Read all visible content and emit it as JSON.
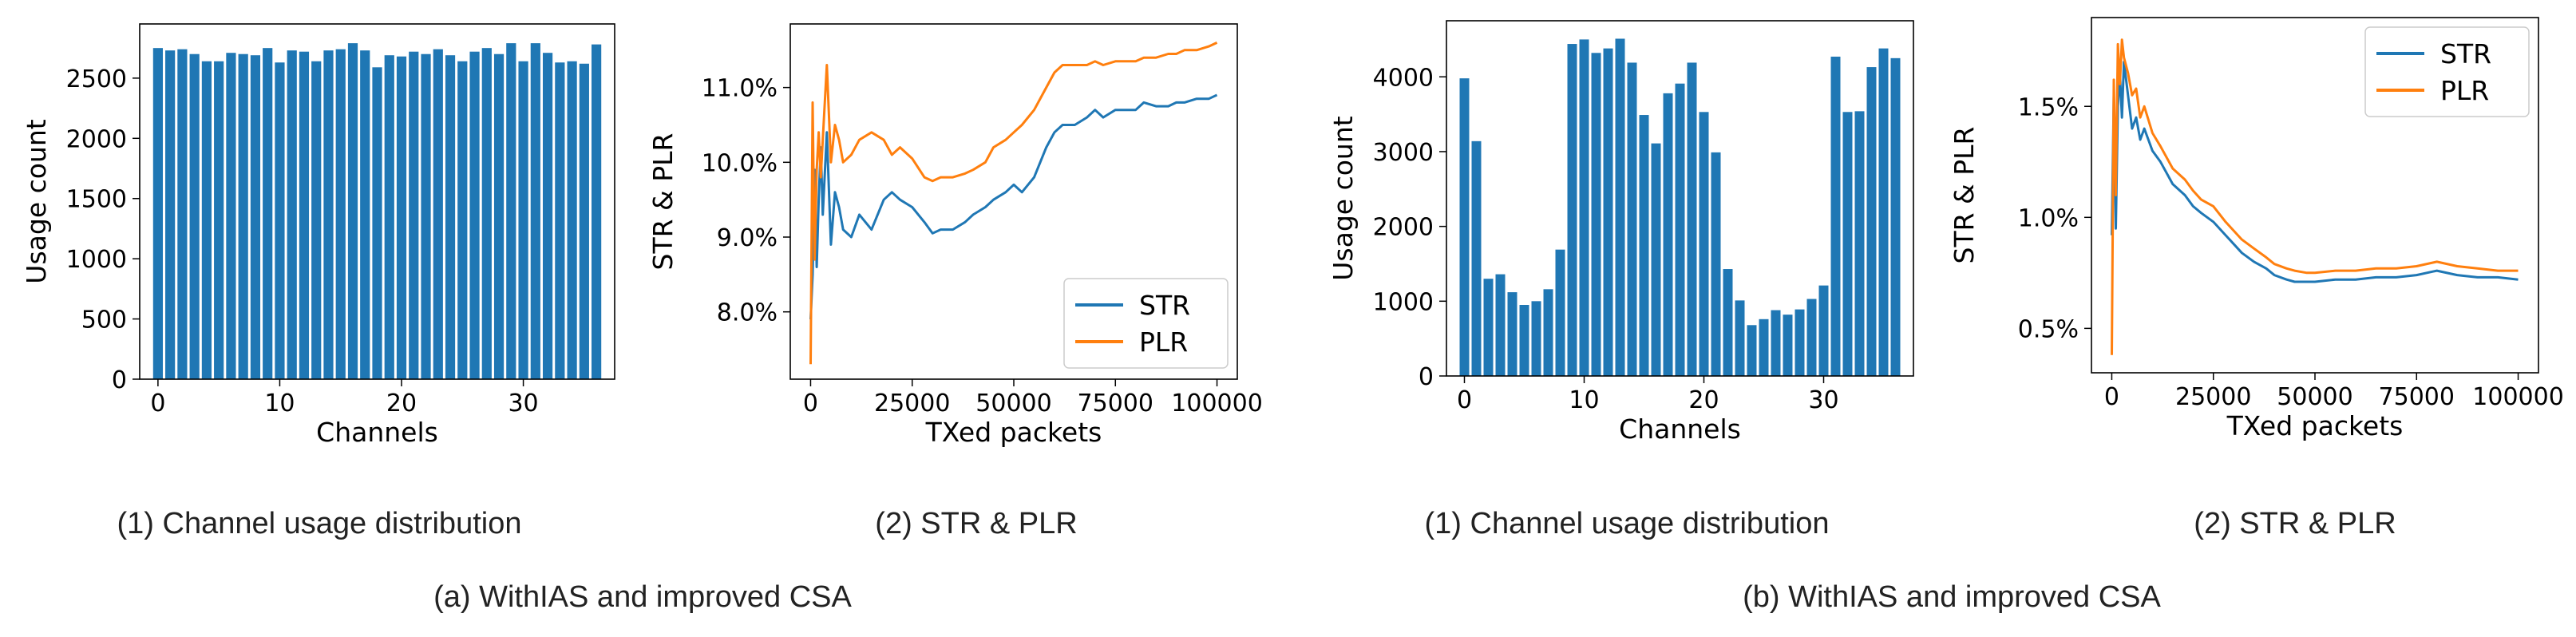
{
  "colors": {
    "str": "#1f77b4",
    "plr": "#ff7f0e",
    "bar": "#1f77b4"
  },
  "captions": {
    "a": {
      "sub1": "(1) Channel usage distribution",
      "sub2": "(2) STR & PLR",
      "group": "(a) WithIAS and improved CSA"
    },
    "b": {
      "sub1": "(1) Channel usage distribution",
      "sub2": "(2) STR & PLR",
      "group": "(b) WithIAS and improved CSA"
    }
  },
  "chart_data": [
    {
      "id": "a1",
      "type": "bar",
      "xlabel": "Channels",
      "ylabel": "Usage count",
      "xlim": [
        -1.5,
        37.5
      ],
      "ylim": [
        0,
        2950
      ],
      "xticks": [
        0,
        10,
        20,
        30
      ],
      "yticks": [
        0,
        500,
        1000,
        1500,
        2000,
        2500
      ],
      "categories": [
        0,
        1,
        2,
        3,
        4,
        5,
        6,
        7,
        8,
        9,
        10,
        11,
        12,
        13,
        14,
        15,
        16,
        17,
        18,
        19,
        20,
        21,
        22,
        23,
        24,
        25,
        26,
        27,
        28,
        29,
        30,
        31,
        32,
        33,
        34,
        35,
        36
      ],
      "values": [
        2750,
        2730,
        2740,
        2700,
        2640,
        2640,
        2710,
        2700,
        2690,
        2750,
        2630,
        2730,
        2720,
        2640,
        2730,
        2740,
        2790,
        2730,
        2590,
        2690,
        2680,
        2720,
        2700,
        2740,
        2690,
        2640,
        2720,
        2750,
        2700,
        2790,
        2640,
        2790,
        2710,
        2630,
        2640,
        2620,
        2780
      ]
    },
    {
      "id": "a2",
      "type": "line",
      "xlabel": "TXed packets",
      "ylabel": "STR & PLR",
      "xlim": [
        -5000,
        105000
      ],
      "ylim": [
        7.1,
        11.85
      ],
      "xticks": [
        0,
        25000,
        50000,
        75000,
        100000
      ],
      "yticks": [
        8.0,
        9.0,
        10.0,
        11.0
      ],
      "ytick_labels": [
        "8.0%",
        "9.0%",
        "10.0%",
        "11.0%"
      ],
      "legend": "lower-right",
      "series": [
        {
          "name": "STR",
          "color_key": "str",
          "x": [
            0,
            500,
            1000,
            1500,
            2000,
            2500,
            3000,
            4000,
            5000,
            6000,
            7000,
            8000,
            10000,
            12000,
            15000,
            18000,
            20000,
            22000,
            25000,
            28000,
            30000,
            32000,
            35000,
            38000,
            40000,
            43000,
            45000,
            48000,
            50000,
            52000,
            55000,
            58000,
            60000,
            62000,
            65000,
            68000,
            70000,
            72000,
            75000,
            78000,
            80000,
            82000,
            85000,
            88000,
            90000,
            92000,
            95000,
            98000,
            100000
          ],
          "y": [
            7.9,
            8.5,
            9.9,
            8.6,
            9.5,
            10.2,
            9.3,
            10.4,
            8.9,
            9.6,
            9.4,
            9.1,
            9.0,
            9.3,
            9.1,
            9.5,
            9.6,
            9.5,
            9.4,
            9.2,
            9.05,
            9.1,
            9.1,
            9.2,
            9.3,
            9.4,
            9.5,
            9.6,
            9.7,
            9.6,
            9.8,
            10.2,
            10.4,
            10.5,
            10.5,
            10.6,
            10.7,
            10.6,
            10.7,
            10.7,
            10.7,
            10.8,
            10.75,
            10.75,
            10.8,
            10.8,
            10.85,
            10.85,
            10.9
          ]
        },
        {
          "name": "PLR",
          "color_key": "plr",
          "x": [
            0,
            500,
            1000,
            1500,
            2000,
            2500,
            3000,
            4000,
            5000,
            6000,
            7000,
            8000,
            10000,
            12000,
            15000,
            18000,
            20000,
            22000,
            25000,
            28000,
            30000,
            32000,
            35000,
            38000,
            40000,
            43000,
            45000,
            48000,
            50000,
            52000,
            55000,
            58000,
            60000,
            62000,
            65000,
            68000,
            70000,
            72000,
            75000,
            78000,
            80000,
            82000,
            85000,
            88000,
            90000,
            92000,
            95000,
            98000,
            100000
          ],
          "y": [
            7.3,
            10.8,
            8.7,
            9.9,
            10.4,
            9.8,
            10.3,
            11.3,
            10.0,
            10.5,
            10.3,
            10.0,
            10.1,
            10.3,
            10.4,
            10.3,
            10.1,
            10.2,
            10.05,
            9.8,
            9.75,
            9.8,
            9.8,
            9.85,
            9.9,
            10.0,
            10.2,
            10.3,
            10.4,
            10.5,
            10.7,
            11.0,
            11.2,
            11.3,
            11.3,
            11.3,
            11.35,
            11.3,
            11.35,
            11.35,
            11.35,
            11.4,
            11.4,
            11.45,
            11.45,
            11.5,
            11.5,
            11.55,
            11.6
          ]
        }
      ]
    },
    {
      "id": "b1",
      "type": "bar",
      "xlabel": "Channels",
      "ylabel": "Usage count",
      "xlim": [
        -1.5,
        37.5
      ],
      "ylim": [
        0,
        4750
      ],
      "xticks": [
        0,
        10,
        20,
        30
      ],
      "yticks": [
        0,
        1000,
        2000,
        3000,
        4000
      ],
      "categories": [
        0,
        1,
        2,
        3,
        4,
        5,
        6,
        7,
        8,
        9,
        10,
        11,
        12,
        13,
        14,
        15,
        16,
        17,
        18,
        19,
        20,
        21,
        22,
        23,
        24,
        25,
        26,
        27,
        28,
        29,
        30,
        31,
        32,
        33,
        34,
        35,
        36
      ],
      "values": [
        3980,
        3140,
        1300,
        1360,
        1120,
        950,
        1000,
        1160,
        1690,
        4440,
        4500,
        4320,
        4380,
        4510,
        4190,
        3490,
        3110,
        3780,
        3910,
        4190,
        3530,
        2990,
        1430,
        1010,
        680,
        760,
        880,
        820,
        890,
        1030,
        1210,
        4270,
        3530,
        3540,
        4130,
        4380,
        4250
      ]
    },
    {
      "id": "b2",
      "type": "line",
      "xlabel": "TXed packets",
      "ylabel": "STR & PLR",
      "xlim": [
        -5000,
        105000
      ],
      "ylim": [
        0.3,
        1.9
      ],
      "xticks": [
        0,
        25000,
        50000,
        75000,
        100000
      ],
      "yticks": [
        0.5,
        1.0,
        1.5
      ],
      "ytick_labels": [
        "0.5%",
        "1.0%",
        "1.5%"
      ],
      "legend": "top-right",
      "series": [
        {
          "name": "STR",
          "color_key": "str",
          "x": [
            0,
            500,
            1000,
            1500,
            2000,
            2500,
            3000,
            4000,
            5000,
            6000,
            7000,
            8000,
            10000,
            12000,
            15000,
            18000,
            20000,
            22000,
            25000,
            28000,
            30000,
            32000,
            35000,
            38000,
            40000,
            43000,
            45000,
            48000,
            50000,
            55000,
            60000,
            65000,
            70000,
            75000,
            80000,
            85000,
            90000,
            95000,
            100000
          ],
          "y": [
            0.92,
            1.55,
            0.95,
            1.5,
            1.65,
            1.45,
            1.7,
            1.55,
            1.4,
            1.45,
            1.35,
            1.4,
            1.3,
            1.25,
            1.15,
            1.1,
            1.05,
            1.02,
            0.98,
            0.92,
            0.88,
            0.84,
            0.8,
            0.77,
            0.74,
            0.72,
            0.71,
            0.71,
            0.71,
            0.72,
            0.72,
            0.73,
            0.73,
            0.74,
            0.76,
            0.74,
            0.73,
            0.73,
            0.72
          ]
        },
        {
          "name": "PLR",
          "color_key": "plr",
          "x": [
            0,
            500,
            1000,
            1500,
            2000,
            2500,
            3000,
            4000,
            5000,
            6000,
            7000,
            8000,
            10000,
            12000,
            15000,
            18000,
            20000,
            22000,
            25000,
            28000,
            30000,
            32000,
            35000,
            38000,
            40000,
            43000,
            45000,
            48000,
            50000,
            55000,
            60000,
            65000,
            70000,
            75000,
            80000,
            85000,
            90000,
            95000,
            100000
          ],
          "y": [
            0.38,
            1.62,
            1.1,
            1.78,
            1.6,
            1.8,
            1.72,
            1.65,
            1.55,
            1.58,
            1.45,
            1.5,
            1.38,
            1.32,
            1.22,
            1.17,
            1.12,
            1.08,
            1.05,
            0.98,
            0.94,
            0.9,
            0.86,
            0.82,
            0.79,
            0.77,
            0.76,
            0.75,
            0.75,
            0.76,
            0.76,
            0.77,
            0.77,
            0.78,
            0.8,
            0.78,
            0.77,
            0.76,
            0.76
          ]
        }
      ]
    }
  ]
}
